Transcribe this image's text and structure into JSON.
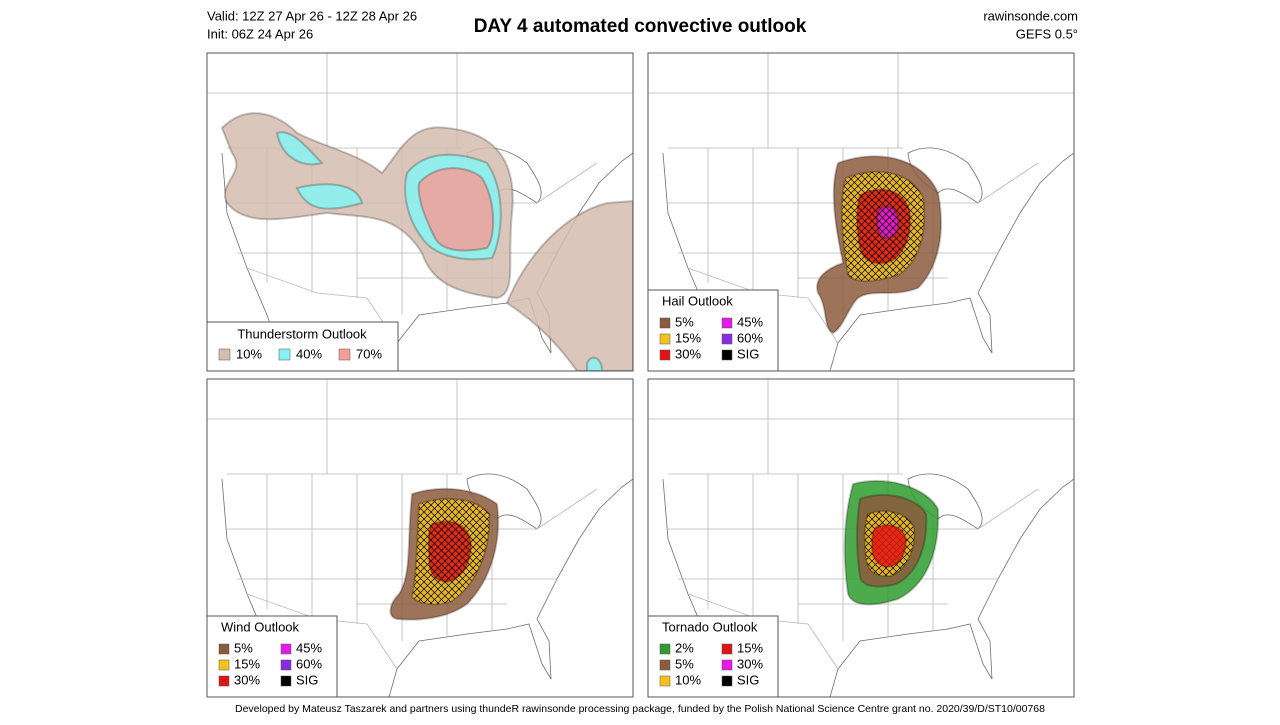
{
  "header": {
    "valid": "Valid: 12Z 27 Apr 26 - 12Z 28 Apr 26",
    "init": "Init: 06Z 24 Apr 26",
    "title": "DAY 4 automated convective outlook",
    "source": "rawinsonde.com",
    "model": "GEFS 0.5°"
  },
  "panels": [
    {
      "title": "Thunderstorm Outlook",
      "legend": [
        {
          "label": "10%",
          "color": "#d4bcae"
        },
        {
          "label": "40%",
          "color": "#86f3f3"
        },
        {
          "label": "70%",
          "color": "#f59e98"
        }
      ]
    },
    {
      "title": "Hail Outlook",
      "legend": [
        {
          "label": "5%",
          "color": "#8c5a3c"
        },
        {
          "label": "15%",
          "color": "#f3c31b"
        },
        {
          "label": "30%",
          "color": "#e01414"
        },
        {
          "label": "45%",
          "color": "#e619e6"
        },
        {
          "label": "60%",
          "color": "#8a2be2"
        },
        {
          "label": "SIG",
          "color": "#000000"
        }
      ]
    },
    {
      "title": "Wind Outlook",
      "legend": [
        {
          "label": "5%",
          "color": "#8c5a3c"
        },
        {
          "label": "15%",
          "color": "#f3c31b"
        },
        {
          "label": "30%",
          "color": "#e01414"
        },
        {
          "label": "45%",
          "color": "#e619e6"
        },
        {
          "label": "60%",
          "color": "#8a2be2"
        },
        {
          "label": "SIG",
          "color": "#000000"
        }
      ]
    },
    {
      "title": "Tornado Outlook",
      "legend": [
        {
          "label": "2%",
          "color": "#2e9c2e"
        },
        {
          "label": "5%",
          "color": "#8c5a3c"
        },
        {
          "label": "10%",
          "color": "#f3c31b"
        },
        {
          "label": "15%",
          "color": "#e01414"
        },
        {
          "label": "30%",
          "color": "#e619e6"
        },
        {
          "label": "SIG",
          "color": "#000000"
        }
      ]
    }
  ],
  "footer": "Developed by Mateusz Taszarek and partners using thundeR rawinsonde processing package, funded by the Polish National Science Centre grant no. 2020/39/D/ST10/00768"
}
